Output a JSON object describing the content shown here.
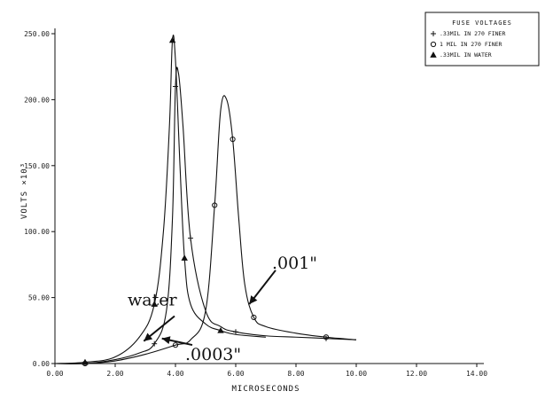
{
  "chart_data": {
    "type": "line",
    "xlabel": "MICROSECONDS",
    "ylabel": "VOLTS ×10³",
    "xlim": [
      0,
      14
    ],
    "ylim": [
      0,
      250
    ],
    "x_ticks": [
      "0.00",
      "2.00",
      "4.00",
      "6.00",
      "8.00",
      "10.00",
      "12.00",
      "14.00"
    ],
    "y_ticks": [
      "0.00",
      "50.00",
      "100.00",
      "150.00",
      "200.00",
      "250.00"
    ],
    "grid": false,
    "legend_position": "top-right",
    "legend_title": "FUSE VOLTAGES",
    "series": [
      {
        "name": ".33MIL IN 270 FINER",
        "marker": "cross",
        "x": [
          0.0,
          1.0,
          2.0,
          2.8,
          3.3,
          3.7,
          3.9,
          4.0,
          4.1,
          4.25,
          4.5,
          5.0,
          5.5,
          6.0,
          7.0,
          8.0,
          9.0,
          10.0
        ],
        "y": [
          0,
          0,
          3,
          8,
          15,
          40,
          110,
          210,
          220,
          180,
          95,
          40,
          28,
          24,
          21,
          20,
          19,
          18
        ]
      },
      {
        "name": "1 MIL IN 270 FINER",
        "marker": "circle",
        "x": [
          0.0,
          1.0,
          2.0,
          3.0,
          4.0,
          4.5,
          5.0,
          5.3,
          5.5,
          5.7,
          5.9,
          6.1,
          6.3,
          6.6,
          7.0,
          8.0,
          9.0,
          10.0
        ],
        "y": [
          0,
          0,
          2,
          7,
          14,
          18,
          40,
          120,
          192,
          200,
          170,
          110,
          60,
          35,
          28,
          23,
          20,
          18
        ]
      },
      {
        "name": ".33MIL IN WATER",
        "marker": "triangle",
        "x": [
          0.0,
          1.0,
          2.0,
          2.8,
          3.3,
          3.6,
          3.8,
          3.9,
          4.0,
          4.15,
          4.3,
          4.5,
          5.0,
          5.5,
          6.0,
          7.0
        ],
        "y": [
          0,
          1,
          5,
          20,
          45,
          100,
          180,
          245,
          230,
          150,
          80,
          45,
          30,
          25,
          22,
          20
        ]
      }
    ],
    "annotations": [
      {
        "text": "water",
        "x": 2.5,
        "y": 42
      },
      {
        "text": ".0003\"",
        "x": 4.5,
        "y": 6
      },
      {
        "text": ".001\"",
        "x": 7.5,
        "y": 68
      }
    ]
  }
}
